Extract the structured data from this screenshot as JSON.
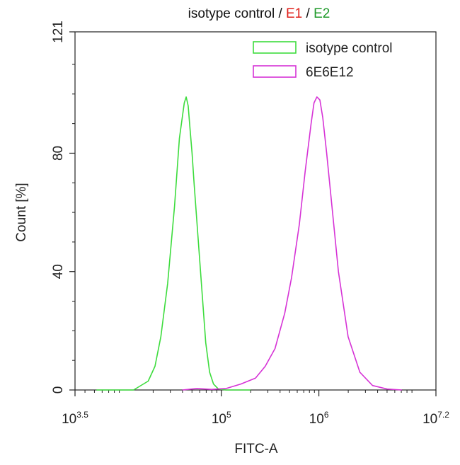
{
  "chart_data": {
    "type": "line",
    "title_parts": [
      {
        "text": "isotype control / ",
        "color": "#111111"
      },
      {
        "text": "E1",
        "color": "#e0201b"
      },
      {
        "text": " / ",
        "color": "#111111"
      },
      {
        "text": "E2",
        "color": "#1f9a2a"
      }
    ],
    "xlabel": "FITC-A",
    "ylabel": "Count  [%]",
    "x_scale": "log",
    "xlim": [
      3.5,
      7.2
    ],
    "ylim": [
      0,
      121
    ],
    "x_ticks": [
      {
        "value": 3.5,
        "base": "10",
        "exp": "3.5"
      },
      {
        "value": 5,
        "base": "10",
        "exp": "5"
      },
      {
        "value": 6,
        "base": "10",
        "exp": "6"
      },
      {
        "value": 7.2,
        "base": "10",
        "exp": "7.2"
      }
    ],
    "y_ticks": [
      {
        "value": 0,
        "label": "0"
      },
      {
        "value": 40,
        "label": "40"
      },
      {
        "value": 80,
        "label": "80"
      },
      {
        "value": 121,
        "label": "121"
      }
    ],
    "grid": false,
    "legend_position": "top-right",
    "series": [
      {
        "name": "isotype control",
        "color": "#3ddc3d",
        "x": [
          3.72,
          4.1,
          4.25,
          4.32,
          4.38,
          4.45,
          4.52,
          4.57,
          4.62,
          4.64,
          4.66,
          4.68,
          4.7,
          4.72,
          4.76,
          4.8,
          4.84,
          4.88,
          4.92,
          4.97,
          5.05,
          5.3
        ],
        "y": [
          0,
          0,
          3,
          8,
          18,
          36,
          62,
          85,
          97,
          99,
          96,
          88,
          80,
          70,
          52,
          34,
          16,
          6,
          2,
          0.3,
          0,
          0
        ]
      },
      {
        "name": "6E6E12",
        "color": "#d633d6",
        "x": [
          4.6,
          4.75,
          4.9,
          5.05,
          5.2,
          5.35,
          5.45,
          5.55,
          5.65,
          5.72,
          5.8,
          5.86,
          5.92,
          5.95,
          5.98,
          6.01,
          6.04,
          6.08,
          6.14,
          6.2,
          6.3,
          6.42,
          6.55,
          6.7,
          6.85
        ],
        "y": [
          0,
          0.5,
          0.2,
          0.5,
          2,
          4,
          8,
          14,
          26,
          38,
          56,
          74,
          90,
          97,
          99,
          98,
          92,
          80,
          60,
          40,
          18,
          6,
          1.5,
          0.3,
          0
        ]
      }
    ]
  }
}
